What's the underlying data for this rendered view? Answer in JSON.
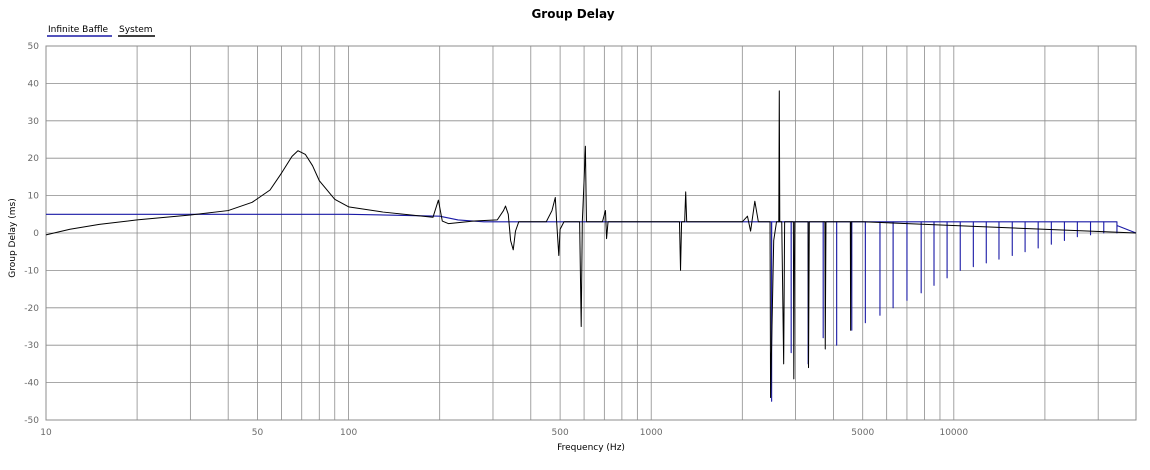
{
  "chart_data": {
    "type": "line",
    "title": "Group Delay",
    "xlabel": "Frequency (Hz)",
    "ylabel": "Group Delay (ms)",
    "x_scale": "log",
    "xlim": [
      10,
      40000
    ],
    "ylim": [
      -50,
      50
    ],
    "x_ticks": [
      10,
      50,
      100,
      500,
      1000,
      5000,
      10000
    ],
    "x_tick_labels": [
      "10",
      "50",
      "100",
      "500",
      "1000",
      "5000",
      "10000"
    ],
    "y_ticks": [
      -50,
      -40,
      -30,
      -20,
      -10,
      0,
      10,
      20,
      30,
      40,
      50
    ],
    "y_tick_labels": [
      "-50",
      "-40",
      "-30",
      "-20",
      "-10",
      "0",
      "10",
      "20",
      "30",
      "40",
      "50"
    ],
    "grid": true,
    "legend_position": "top-left",
    "series": [
      {
        "name": "Infinite Baffle",
        "color": "#1a1aa6",
        "points": [
          [
            10,
            5
          ],
          [
            30,
            5
          ],
          [
            100,
            5
          ],
          [
            200,
            4.5
          ],
          [
            230,
            3.5
          ],
          [
            280,
            3
          ],
          [
            500,
            3
          ],
          [
            1000,
            3
          ],
          [
            2000,
            3
          ],
          [
            2499,
            3
          ],
          [
            2500,
            -45
          ],
          [
            2501,
            3
          ],
          [
            2900,
            3
          ],
          [
            2901,
            -32
          ],
          [
            2902,
            3
          ],
          [
            3300,
            3
          ],
          [
            3301,
            -35
          ],
          [
            3302,
            3
          ],
          [
            3700,
            3
          ],
          [
            3701,
            -28
          ],
          [
            3702,
            3
          ],
          [
            4100,
            3
          ],
          [
            4101,
            -30
          ],
          [
            4102,
            3
          ],
          [
            4600,
            3
          ],
          [
            4601,
            -26
          ],
          [
            4602,
            3
          ],
          [
            5100,
            3
          ],
          [
            5101,
            -24
          ],
          [
            5102,
            3
          ],
          [
            5700,
            3
          ],
          [
            5701,
            -22
          ],
          [
            5702,
            3
          ],
          [
            6300,
            3
          ],
          [
            6301,
            -20
          ],
          [
            6302,
            3
          ],
          [
            7000,
            3
          ],
          [
            7001,
            -18
          ],
          [
            7002,
            3
          ],
          [
            7800,
            3
          ],
          [
            7801,
            -16
          ],
          [
            7802,
            3
          ],
          [
            8600,
            3
          ],
          [
            8601,
            -14
          ],
          [
            8602,
            3
          ],
          [
            9500,
            3
          ],
          [
            9501,
            -12
          ],
          [
            9502,
            3
          ],
          [
            10500,
            3
          ],
          [
            10501,
            -10
          ],
          [
            10502,
            3
          ],
          [
            11600,
            3
          ],
          [
            11601,
            -9
          ],
          [
            11602,
            3
          ],
          [
            12800,
            3
          ],
          [
            12801,
            -8
          ],
          [
            12802,
            3
          ],
          [
            14100,
            3
          ],
          [
            14101,
            -7
          ],
          [
            14102,
            3
          ],
          [
            15600,
            3
          ],
          [
            15601,
            -6
          ],
          [
            15602,
            3
          ],
          [
            17200,
            3
          ],
          [
            17201,
            -5
          ],
          [
            17202,
            3
          ],
          [
            19000,
            3
          ],
          [
            19001,
            -4
          ],
          [
            19002,
            3
          ],
          [
            21000,
            3
          ],
          [
            21001,
            -3
          ],
          [
            21002,
            3
          ],
          [
            23200,
            3
          ],
          [
            23201,
            -2
          ],
          [
            23202,
            3
          ],
          [
            25600,
            3
          ],
          [
            25601,
            -1
          ],
          [
            25602,
            3
          ],
          [
            28300,
            3
          ],
          [
            28301,
            -0.5
          ],
          [
            28302,
            3
          ],
          [
            31300,
            3
          ],
          [
            31301,
            0
          ],
          [
            31302,
            3
          ],
          [
            34600,
            3
          ],
          [
            34601,
            0
          ],
          [
            34602,
            2
          ],
          [
            40000,
            0
          ]
        ]
      },
      {
        "name": "System",
        "color": "#000000",
        "points": [
          [
            10,
            -0.5
          ],
          [
            12,
            1
          ],
          [
            15,
            2.3
          ],
          [
            20,
            3.5
          ],
          [
            30,
            4.8
          ],
          [
            40,
            6
          ],
          [
            48,
            8.2
          ],
          [
            55,
            11.5
          ],
          [
            60,
            16
          ],
          [
            65,
            20.5
          ],
          [
            68,
            22
          ],
          [
            72,
            21
          ],
          [
            76,
            18
          ],
          [
            80,
            14
          ],
          [
            90,
            9
          ],
          [
            100,
            7
          ],
          [
            130,
            5.6
          ],
          [
            170,
            4.6
          ],
          [
            190,
            4.2
          ],
          [
            198,
            8.8
          ],
          [
            204,
            3.2
          ],
          [
            214,
            2.5
          ],
          [
            260,
            3.2
          ],
          [
            310,
            3.5
          ],
          [
            325,
            6
          ],
          [
            330,
            7.2
          ],
          [
            337,
            5
          ],
          [
            343,
            -2
          ],
          [
            350,
            -4.5
          ],
          [
            356,
            0.5
          ],
          [
            365,
            3
          ],
          [
            450,
            3
          ],
          [
            470,
            6
          ],
          [
            482,
            9.5
          ],
          [
            487,
            3
          ],
          [
            495,
            -6
          ],
          [
            500,
            1
          ],
          [
            515,
            3
          ],
          [
            580,
            3
          ],
          [
            587,
            -25
          ],
          [
            592,
            3
          ],
          [
            600,
            14
          ],
          [
            606,
            23.2
          ],
          [
            611,
            3
          ],
          [
            625,
            3
          ],
          [
            690,
            3
          ],
          [
            706,
            6
          ],
          [
            712,
            -1.5
          ],
          [
            720,
            3
          ],
          [
            900,
            3
          ],
          [
            1000,
            3
          ],
          [
            1240,
            3
          ],
          [
            1250,
            -10
          ],
          [
            1260,
            3
          ],
          [
            1290,
            3
          ],
          [
            1300,
            11
          ],
          [
            1310,
            3
          ],
          [
            1500,
            3
          ],
          [
            2000,
            3
          ],
          [
            2080,
            4.5
          ],
          [
            2130,
            0.5
          ],
          [
            2200,
            8.5
          ],
          [
            2260,
            3
          ],
          [
            2470,
            3
          ],
          [
            2480,
            -44
          ],
          [
            2540,
            -2
          ],
          [
            2595,
            3
          ],
          [
            2640,
            3
          ],
          [
            2650,
            38
          ],
          [
            2660,
            3
          ],
          [
            2700,
            3
          ],
          [
            2740,
            -35
          ],
          [
            2760,
            3
          ],
          [
            2950,
            3
          ],
          [
            2960,
            -39
          ],
          [
            2980,
            3
          ],
          [
            3300,
            3
          ],
          [
            3310,
            -36
          ],
          [
            3330,
            3
          ],
          [
            3750,
            3
          ],
          [
            3760,
            -31
          ],
          [
            3780,
            3
          ],
          [
            4550,
            3
          ],
          [
            4560,
            -26
          ],
          [
            4580,
            3
          ],
          [
            5000,
            3
          ],
          [
            40000,
            0
          ]
        ]
      }
    ]
  }
}
